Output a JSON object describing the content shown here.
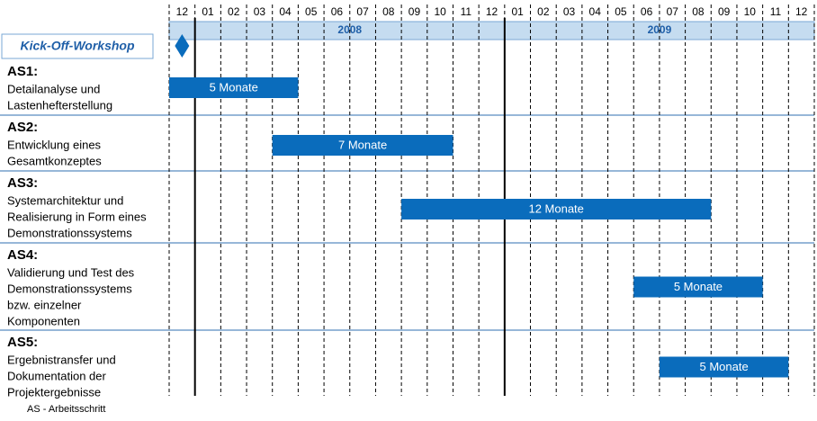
{
  "chart_data": {
    "type": "gantt",
    "months": [
      "12",
      "01",
      "02",
      "03",
      "04",
      "05",
      "06",
      "07",
      "08",
      "09",
      "10",
      "11",
      "12",
      "01",
      "02",
      "03",
      "04",
      "05",
      "06",
      "07",
      "08",
      "09",
      "10",
      "11",
      "12"
    ],
    "years": [
      {
        "label": "2008",
        "start": 1,
        "months": 12
      },
      {
        "label": "2009",
        "start": 13,
        "months": 12
      }
    ],
    "milestone": {
      "label": "Kick-Off-Workshop",
      "at": 0
    },
    "color": "#0a6cbc",
    "tasks": [
      {
        "name": "AS1:",
        "lines": [
          "Detailanalyse und",
          "Lastenhefterstellung"
        ],
        "start": 0,
        "duration": 5,
        "duration_label": "5 Monate"
      },
      {
        "name": "AS2:",
        "lines": [
          "Entwicklung eines",
          "Gesamtkonzeptes"
        ],
        "start": 4,
        "duration": 7,
        "duration_label": "7 Monate"
      },
      {
        "name": "AS3:",
        "lines": [
          "Systemarchitektur und",
          "Realisierung in Form eines",
          "Demonstrationssystems"
        ],
        "start": 9,
        "duration": 12,
        "duration_label": "12 Monate"
      },
      {
        "name": "AS4:",
        "lines": [
          "Validierung und Test des",
          "Demonstrationssystems",
          "bzw. einzelner",
          "Komponenten"
        ],
        "start": 18,
        "duration": 5,
        "duration_label": "5 Monate"
      },
      {
        "name": "AS5:",
        "lines": [
          "Ergebnistransfer und",
          "Dokumentation der",
          "Projektergebnisse"
        ],
        "start": 19,
        "duration": 5,
        "duration_label": "5 Monate"
      }
    ],
    "footnote": "AS - Arbeitsschritt"
  }
}
